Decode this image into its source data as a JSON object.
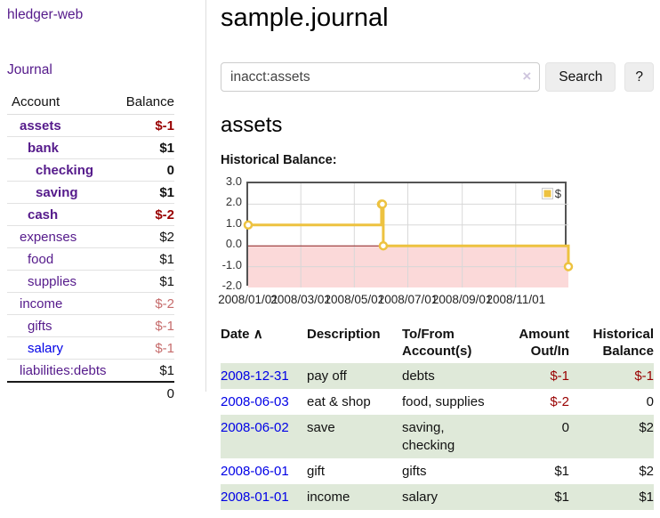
{
  "app": {
    "brand": "hledger-web"
  },
  "sidebar": {
    "journal_label": "Journal",
    "accounts_table": {
      "headers": {
        "account": "Account",
        "balance": "Balance"
      },
      "rows": [
        {
          "name": "assets",
          "balance": "$-1",
          "depth": 0,
          "inacct": true,
          "tone": "neg-strong",
          "unvisited": false
        },
        {
          "name": "bank",
          "balance": "$1",
          "depth": 1,
          "inacct": true,
          "tone": "",
          "unvisited": false
        },
        {
          "name": "checking",
          "balance": "0",
          "depth": 2,
          "inacct": true,
          "tone": "",
          "unvisited": false
        },
        {
          "name": "saving",
          "balance": "$1",
          "depth": 2,
          "inacct": true,
          "tone": "",
          "unvisited": false
        },
        {
          "name": "cash",
          "balance": "$-2",
          "depth": 1,
          "inacct": true,
          "tone": "neg-strong",
          "unvisited": false
        },
        {
          "name": "expenses",
          "balance": "$2",
          "depth": 0,
          "inacct": false,
          "tone": "",
          "unvisited": false
        },
        {
          "name": "food",
          "balance": "$1",
          "depth": 1,
          "inacct": false,
          "tone": "",
          "unvisited": false
        },
        {
          "name": "supplies",
          "balance": "$1",
          "depth": 1,
          "inacct": false,
          "tone": "",
          "unvisited": false
        },
        {
          "name": "income",
          "balance": "$-2",
          "depth": 0,
          "inacct": false,
          "tone": "neg-soft",
          "unvisited": false
        },
        {
          "name": "gifts",
          "balance": "$-1",
          "depth": 1,
          "inacct": false,
          "tone": "neg-soft",
          "unvisited": false
        },
        {
          "name": "salary",
          "balance": "$-1",
          "depth": 1,
          "inacct": false,
          "tone": "neg-soft",
          "unvisited": true
        },
        {
          "name": "liabilities:debts",
          "balance": "$1",
          "depth": 0,
          "inacct": false,
          "tone": "",
          "unvisited": false
        }
      ],
      "total": "0"
    }
  },
  "main": {
    "title": "sample.journal",
    "search": {
      "value": "inacct:assets",
      "clear_icon": "×",
      "button_label": "Search",
      "help_label": "?"
    },
    "account_heading": "assets",
    "chart_title": "Historical Balance:"
  },
  "chart_data": {
    "type": "line",
    "step": true,
    "title": "Historical Balance",
    "legend": [
      {
        "label": "$",
        "color": "#edc240"
      }
    ],
    "legend_position": "top-right",
    "grid": true,
    "x_start": "2008-01-01",
    "x_days": 365,
    "points": [
      {
        "date": "2008-01-01",
        "value": 1
      },
      {
        "date": "2008-06-01",
        "value": 2
      },
      {
        "date": "2008-06-02",
        "value": 2
      },
      {
        "date": "2008-06-03",
        "value": 0
      },
      {
        "date": "2008-12-31",
        "value": -1
      }
    ],
    "ylim": [
      -2,
      3
    ],
    "yticks": [
      "3.0",
      "2.0",
      "1.0",
      "0.0",
      "-1.0",
      "-2.0"
    ],
    "xticks": [
      "2008/01/01",
      "2008/03/01",
      "2008/05/01",
      "2008/07/01",
      "2008/09/01",
      "2008/11/01"
    ],
    "series_color": "#edc240",
    "negative_region_color": "#fbd9d9",
    "zero_line_color": "#8b1f1f"
  },
  "register": {
    "headers": {
      "date": "Date",
      "sort_icon": "∧",
      "description": "Description",
      "accounts": "To/From Account(s)",
      "amount": "Amount Out/In",
      "balance": "Historical Balance"
    },
    "rows": [
      {
        "date": "2008-12-31",
        "description": "pay off",
        "accounts": "debts",
        "amount": "$-1",
        "amount_neg": true,
        "balance": "$-1",
        "balance_neg": true
      },
      {
        "date": "2008-06-03",
        "description": "eat & shop",
        "accounts": "food, supplies",
        "amount": "$-2",
        "amount_neg": true,
        "balance": "0",
        "balance_neg": false
      },
      {
        "date": "2008-06-02",
        "description": "save",
        "accounts": "saving, checking",
        "amount": "0",
        "amount_neg": false,
        "balance": "$2",
        "balance_neg": false
      },
      {
        "date": "2008-06-01",
        "description": "gift",
        "accounts": "gifts",
        "amount": "$1",
        "amount_neg": false,
        "balance": "$2",
        "balance_neg": false
      },
      {
        "date": "2008-01-01",
        "description": "income",
        "accounts": "salary",
        "amount": "$1",
        "amount_neg": false,
        "balance": "$1",
        "balance_neg": false
      }
    ]
  }
}
